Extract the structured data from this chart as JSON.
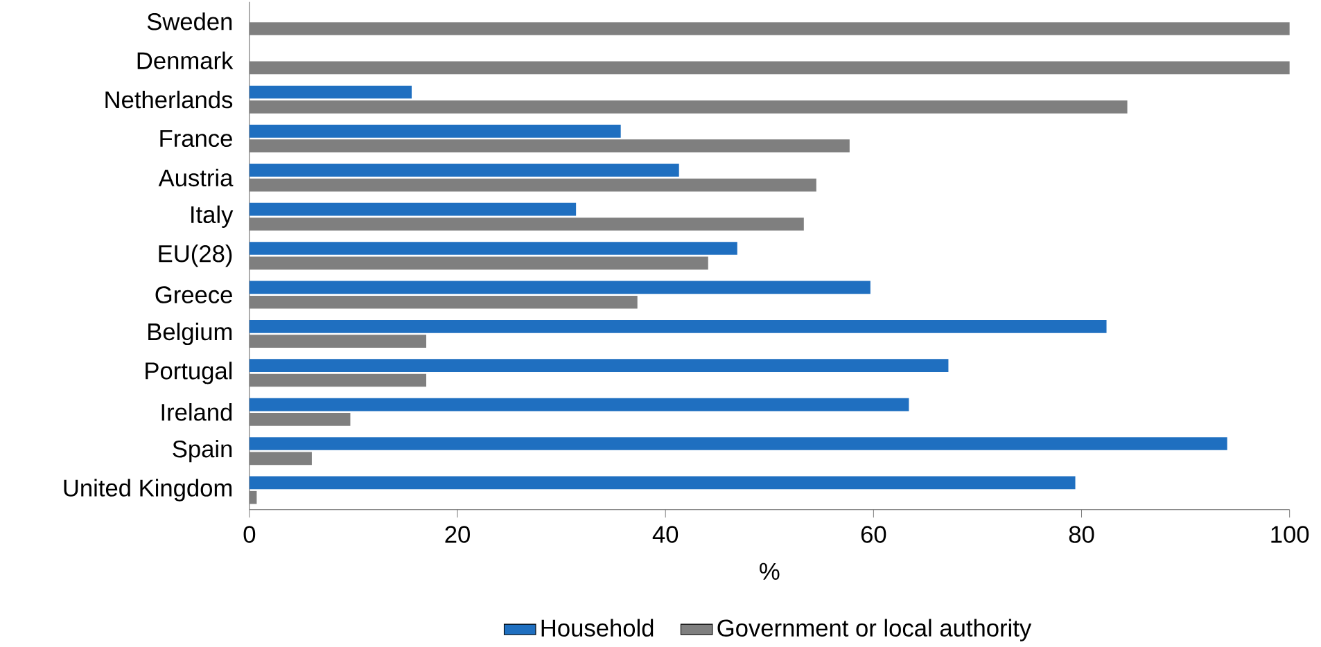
{
  "chart_data": {
    "type": "bar",
    "orientation": "horizontal",
    "xlabel": "%",
    "categories": [
      "Sweden",
      "Denmark",
      "Netherlands",
      "France",
      "Austria",
      "Italy",
      "EU(28)",
      "Greece",
      "Belgium",
      "Portugal",
      "Ireland",
      "Spain",
      "United Kingdom"
    ],
    "series": [
      {
        "name": "Household",
        "color": "#1f6fc0",
        "values": [
          0,
          0,
          15.6,
          35.7,
          41.3,
          31.4,
          46.9,
          59.7,
          82.4,
          67.2,
          63.4,
          94.0,
          79.4
        ]
      },
      {
        "name": "Government or local authority",
        "color": "#7f7f7f",
        "values": [
          100,
          100,
          84.4,
          57.7,
          54.5,
          53.3,
          44.1,
          37.3,
          17.0,
          17.0,
          9.7,
          6.0,
          0.7
        ]
      }
    ],
    "xlim": [
      0,
      100
    ],
    "xticks": [
      0,
      20,
      40,
      60,
      80,
      100
    ],
    "grid": false,
    "legend": "bottom"
  }
}
